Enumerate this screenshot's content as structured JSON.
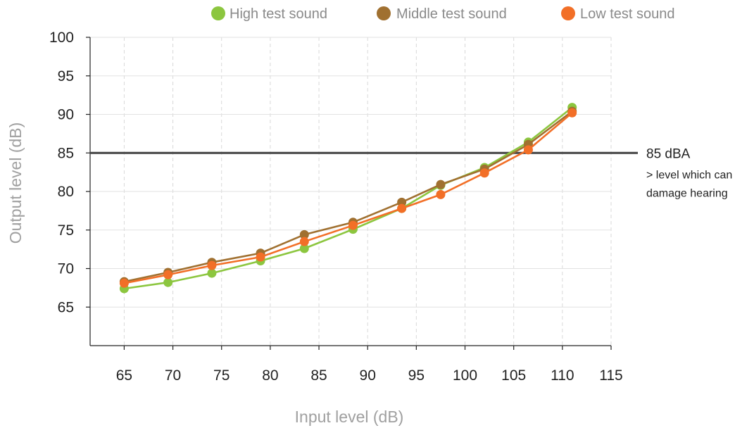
{
  "chart_data": {
    "type": "line",
    "xlabel": "Input level (dB)",
    "ylabel": "Output level (dB)",
    "xlim": [
      61.5,
      115
    ],
    "ylim": [
      60,
      100
    ],
    "xticks": [
      65,
      70,
      75,
      80,
      85,
      90,
      95,
      100,
      105,
      110,
      115
    ],
    "yticks": [
      65,
      70,
      75,
      80,
      85,
      90,
      95,
      100
    ],
    "grid": true,
    "legend_position": "top",
    "series": [
      {
        "name": "High test sound",
        "color": "#8cc63f",
        "x": [
          65,
          69.5,
          74,
          79,
          83.5,
          88.5,
          93.5,
          97.5,
          102,
          106.5,
          111
        ],
        "y": [
          67.4,
          68.2,
          69.4,
          71.0,
          72.6,
          75.1,
          77.8,
          80.8,
          83.1,
          86.4,
          90.9
        ]
      },
      {
        "name": "Middle test sound",
        "color": "#a07030",
        "x": [
          65,
          69.5,
          74,
          79,
          83.5,
          88.5,
          93.5,
          97.5,
          102,
          106.5,
          111
        ],
        "y": [
          68.3,
          69.5,
          70.8,
          72.0,
          74.4,
          76.0,
          78.6,
          80.9,
          82.9,
          86.1,
          90.4
        ]
      },
      {
        "name": "Low test sound",
        "color": "#f26f27",
        "x": [
          65,
          69.5,
          74,
          79,
          83.5,
          88.5,
          93.5,
          97.5,
          102,
          106.5,
          111
        ],
        "y": [
          68.1,
          69.2,
          70.4,
          71.5,
          73.5,
          75.6,
          77.8,
          79.6,
          82.4,
          85.4,
          90.2
        ]
      }
    ],
    "reference_line": {
      "y": 85,
      "color": "#444444",
      "label": "85 dBA",
      "note_line1": "> level which can",
      "note_line2": "damage hearing"
    }
  }
}
